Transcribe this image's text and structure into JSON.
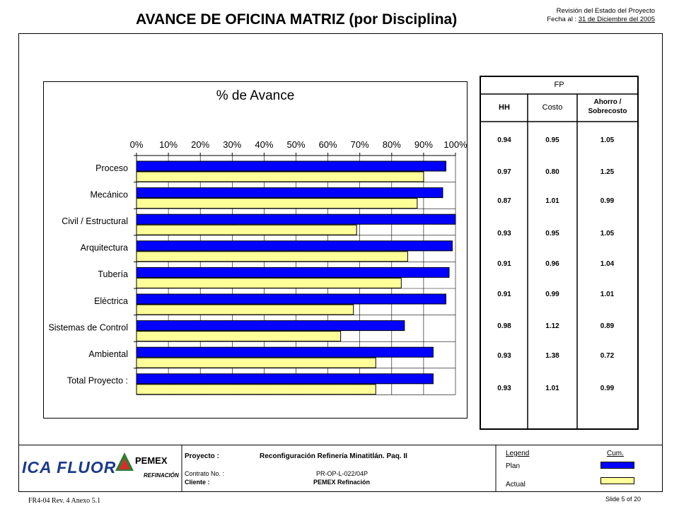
{
  "header": {
    "title": "AVANCE DE OFICINA MATRIZ (por Disciplina)",
    "revision_label": "Revisión del Estado del Proyecto",
    "date_label": "Fecha al :",
    "date_value": "31 de Diciembre del 2005"
  },
  "chart_data": {
    "type": "bar",
    "orientation": "horizontal",
    "title": "% de Avance",
    "x_ticks": [
      "0%",
      "10%",
      "20%",
      "30%",
      "40%",
      "50%",
      "60%",
      "70%",
      "80%",
      "90%",
      "100%"
    ],
    "xlim": [
      0,
      100
    ],
    "grid": true,
    "categories": [
      "Proceso",
      "Mecánico",
      "Civil / Estructural",
      "Arquitectura",
      "Tubería",
      "Eléctrica",
      "Sistemas de Control",
      "Ambiental",
      "Total Proyecto :"
    ],
    "series": [
      {
        "name": "Plan",
        "color": "#0000FF",
        "values": [
          97,
          96,
          100,
          99,
          98,
          97,
          84,
          93,
          93
        ]
      },
      {
        "name": "Actual",
        "color": "#FFFF99",
        "values": [
          90,
          88,
          69,
          85,
          83,
          68,
          64,
          75,
          75
        ]
      }
    ]
  },
  "fp_table": {
    "group_header": "FP",
    "columns": [
      "HH",
      "Costo",
      "Ahorro / Sobrecosto"
    ],
    "rows": [
      [
        "0.94",
        "0.95",
        "1.05"
      ],
      [
        "0.97",
        "0.80",
        "1.25"
      ],
      [
        "0.87",
        "1.01",
        "0.99"
      ],
      [
        "0.93",
        "0.95",
        "1.05"
      ],
      [
        "0.91",
        "0.96",
        "1.04"
      ],
      [
        "0.91",
        "0.99",
        "1.01"
      ],
      [
        "0.98",
        "1.12",
        "0.89"
      ],
      [
        "0.93",
        "1.38",
        "0.72"
      ],
      [
        "0.93",
        "1.01",
        "0.99"
      ]
    ]
  },
  "footer": {
    "logo_ica": "ICA FLUOR",
    "logo_pemex": "PEMEX",
    "logo_refinacion": "REFINACIÓN",
    "proyecto_label": "Proyecto :",
    "proyecto_value": "Reconfiguración Refinería Minatitlán.  Paq. II",
    "contrato_label": "Contrato No. :",
    "contrato_value": "PR-OP-L-022/04P",
    "cliente_label": "Cliente :",
    "cliente_value": "PEMEX Refinación",
    "legend_title": "Legend",
    "legend_cum": "Cum.",
    "legend_plan": "Plan",
    "legend_actual": "Actual",
    "form_ref": "FR4-04 Rev. 4  Anexo 5.1",
    "slide_label": "Slide 5 of 20"
  }
}
